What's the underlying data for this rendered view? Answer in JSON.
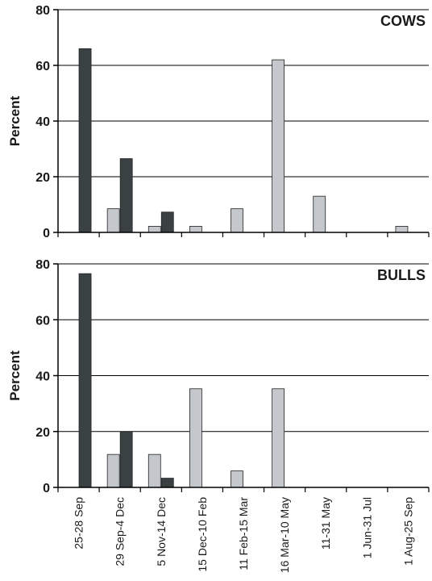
{
  "chart_data": {
    "type": "bar",
    "categories": [
      "25-28 Sep",
      "29 Sep-4 Dec",
      "5 Nov-14 Dec",
      "15 Dec-10 Feb",
      "11 Feb-15 Mar",
      "16 Mar-10 May",
      "11-31 May",
      "1 Jun-31 Jul",
      "1 Aug-25 Sep"
    ],
    "ylabel": "Percent",
    "ylim": [
      0,
      80
    ],
    "yticks": [
      0,
      20,
      40,
      60,
      80
    ],
    "grid": true,
    "colors": {
      "light": "#c4c8cc",
      "dark": "#3a4142",
      "grid": "#000000"
    },
    "panels": [
      {
        "title": "COWS",
        "series": [
          {
            "color": "light",
            "values": [
              0,
              8.5,
              2.2,
              2.2,
              8.5,
              62,
              13,
              0,
              2.2
            ]
          },
          {
            "color": "dark",
            "values": [
              66,
              26.5,
              7.3,
              0,
              0,
              0,
              0,
              0,
              0
            ]
          }
        ]
      },
      {
        "title": "BULLS",
        "series": [
          {
            "color": "light",
            "values": [
              0,
              11.8,
              11.8,
              35.3,
              5.9,
              35.3,
              0,
              0,
              0
            ]
          },
          {
            "color": "dark",
            "values": [
              76.5,
              20,
              3.3,
              0,
              0,
              0,
              0,
              0,
              0
            ]
          }
        ]
      }
    ]
  }
}
